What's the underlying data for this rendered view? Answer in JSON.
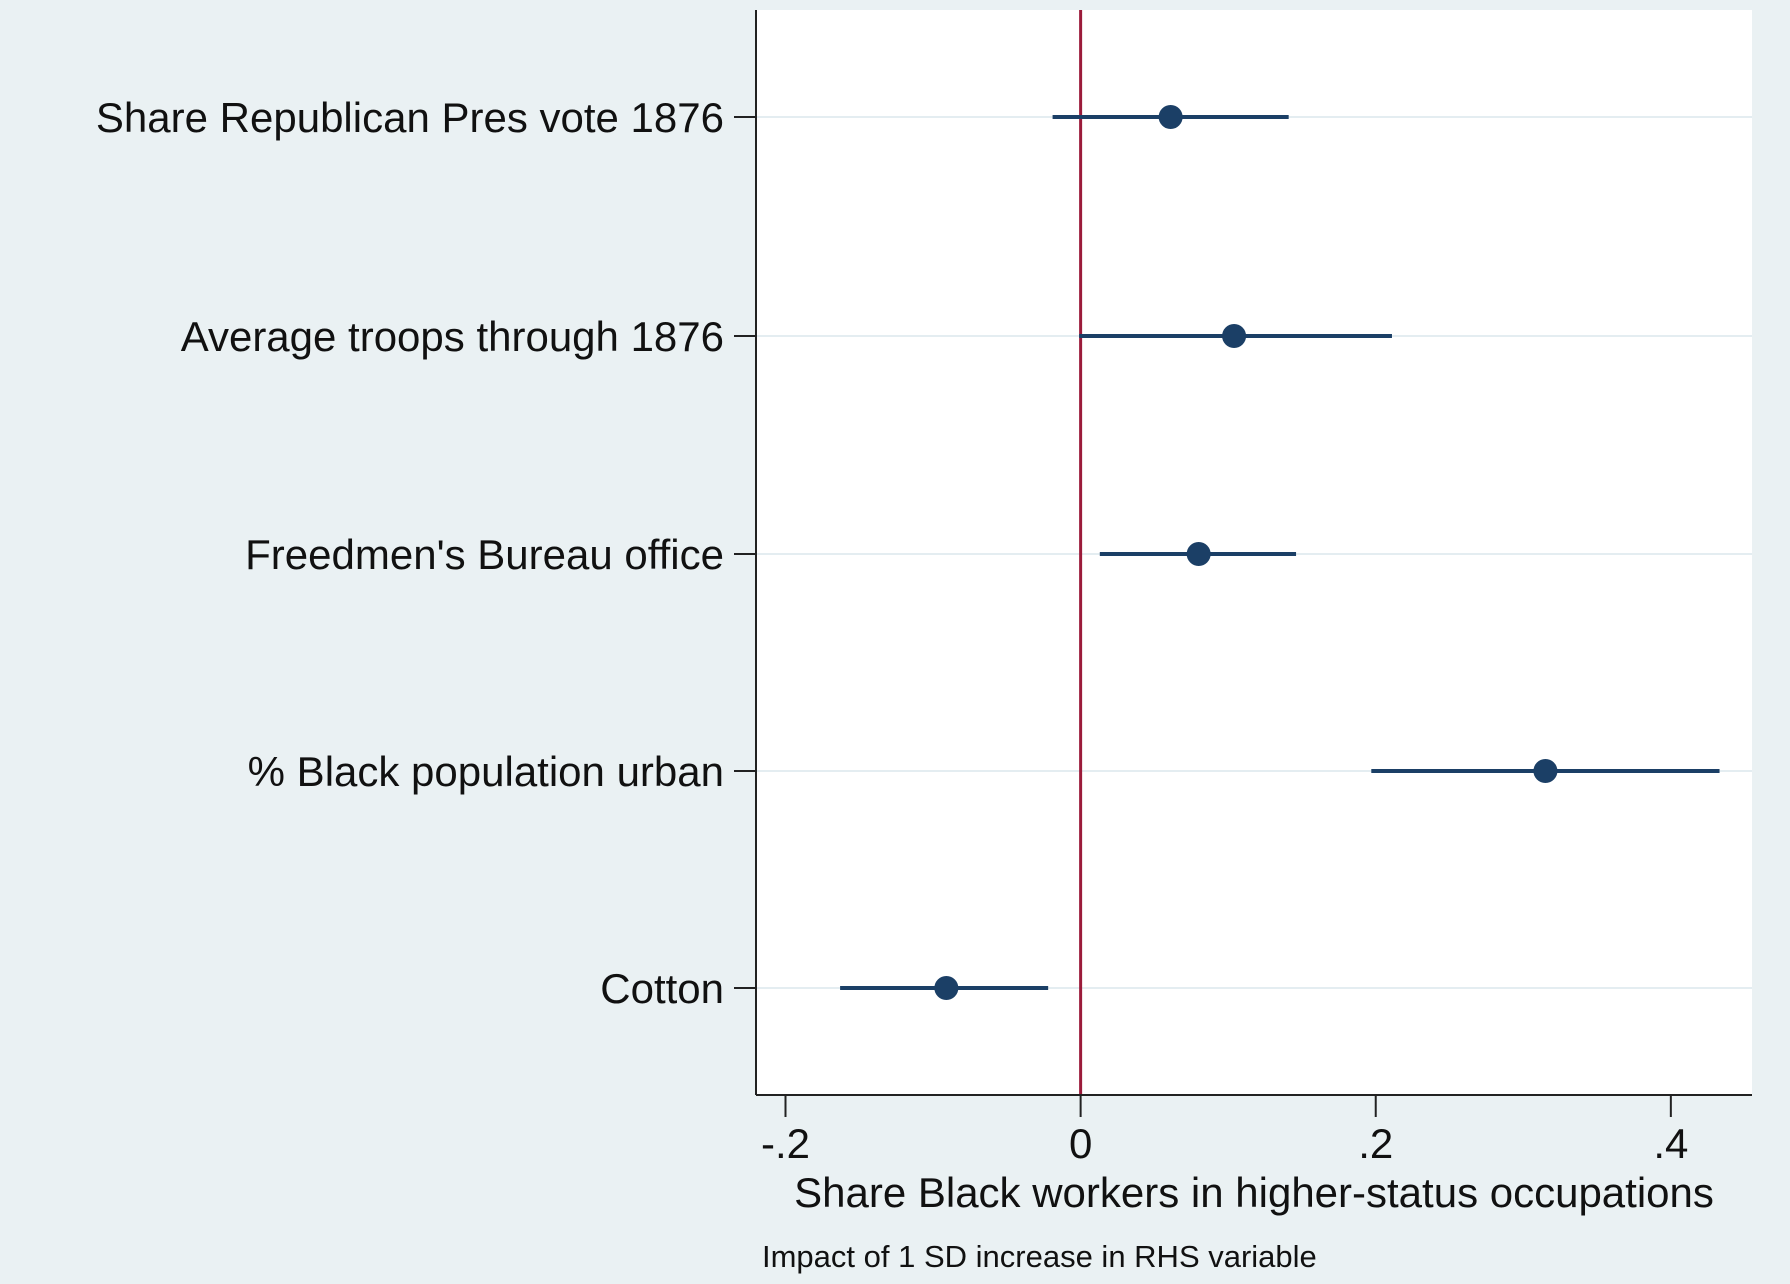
{
  "chart_data": {
    "type": "coefficient-plot",
    "orientation": "horizontal",
    "categories": [
      "Share Republican Pres vote 1876",
      "Average troops through 1876",
      "Freedmen's Bureau office",
      "% Black population urban",
      "Cotton"
    ],
    "series": [
      {
        "estimates": [
          0.061,
          0.104,
          0.08,
          0.315,
          -0.091
        ],
        "ci_low": [
          -0.019,
          -0.001,
          0.013,
          0.197,
          -0.163
        ],
        "ci_high": [
          0.141,
          0.211,
          0.146,
          0.433,
          -0.022
        ]
      }
    ],
    "reference_line": 0,
    "xlim": [
      -0.22,
      0.455
    ],
    "xticks": [
      -0.2,
      0,
      0.2,
      0.4
    ],
    "xtick_labels": [
      "-.2",
      "0",
      ".2",
      ".4"
    ],
    "xlabel": "Share Black workers in higher-status occupations",
    "note": "Impact of 1 SD increase in RHS variable",
    "title": "",
    "grid": true,
    "colors": {
      "marker": "#1b3f66",
      "reference_line": "#9b1b3a",
      "plot_background": "#ffffff",
      "page_background": "#eaf1f3",
      "grid": "#e4edf1"
    }
  }
}
